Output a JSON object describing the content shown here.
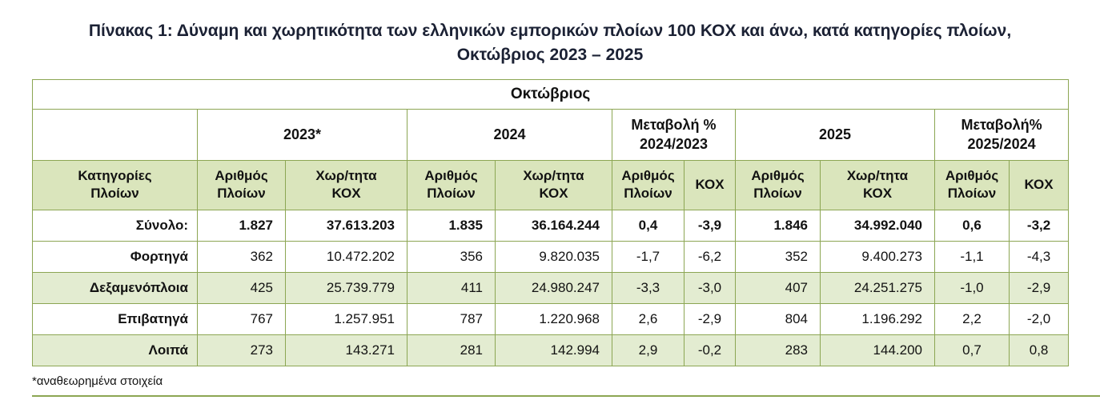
{
  "page": {
    "title_line1": "Πίνακας 1: Δύναμη και χωρητικότητα των ελληνικών εμπορικών πλοίων 100 ΚΟΧ και άνω, κατά κατηγορίες πλοίων,",
    "title_line2": "Οκτώβριος 2023 – 2025",
    "footnote": "*αναθεωρημένα στοιχεία"
  },
  "colors": {
    "border_green": "#8ca653",
    "header_bg_green": "#dae5bc",
    "stripe_bg_green": "#e3ecd1",
    "title_text": "#1b2134"
  },
  "table": {
    "month_header": "Οκτώβριος",
    "groups": [
      {
        "line1": "2023*",
        "line2": ""
      },
      {
        "line1": "2024",
        "line2": ""
      },
      {
        "line1": "Μεταβολή %",
        "line2": "2024/2023"
      },
      {
        "line1": "2025",
        "line2": ""
      },
      {
        "line1": "Μεταβολή%",
        "line2": "2025/2024"
      }
    ],
    "columns": [
      {
        "line1": "Κατηγορίες",
        "line2": "Πλοίων"
      },
      {
        "line1": "Αριθμός",
        "line2": "Πλοίων"
      },
      {
        "line1": "Χωρ/τητα",
        "line2": "ΚΟΧ"
      },
      {
        "line1": "Αριθμός",
        "line2": "Πλοίων"
      },
      {
        "line1": "Χωρ/τητα",
        "line2": "ΚΟΧ"
      },
      {
        "line1": "Αριθμός",
        "line2": "Πλοίων"
      },
      {
        "line1": "ΚΟΧ",
        "line2": ""
      },
      {
        "line1": "Αριθμός",
        "line2": "Πλοίων"
      },
      {
        "line1": "Χωρ/τητα",
        "line2": "ΚΟΧ"
      },
      {
        "line1": "Αριθμός",
        "line2": "Πλοίων"
      },
      {
        "line1": "ΚΟΧ",
        "line2": ""
      }
    ],
    "rows": [
      {
        "category": "Σύνολο:",
        "values": [
          "1.827",
          "37.613.203",
          "1.835",
          "36.164.244",
          "0,4",
          "-3,9",
          "1.846",
          "34.992.040",
          "0,6",
          "-3,2"
        ]
      },
      {
        "category": "Φορτηγά",
        "values": [
          "362",
          "10.472.202",
          "356",
          "9.820.035",
          "-1,7",
          "-6,2",
          "352",
          "9.400.273",
          "-1,1",
          "-4,3"
        ]
      },
      {
        "category": "Δεξαμενόπλοια",
        "values": [
          "425",
          "25.739.779",
          "411",
          "24.980.247",
          "-3,3",
          "-3,0",
          "407",
          "24.251.275",
          "-1,0",
          "-2,9"
        ]
      },
      {
        "category": "Επιβατηγά",
        "values": [
          "767",
          "1.257.951",
          "787",
          "1.220.968",
          "2,6",
          "-2,9",
          "804",
          "1.196.292",
          "2,2",
          "-2,0"
        ]
      },
      {
        "category": "Λοιπά",
        "values": [
          "273",
          "143.271",
          "281",
          "142.994",
          "2,9",
          "-0,2",
          "283",
          "144.200",
          "0,7",
          "0,8"
        ]
      }
    ]
  }
}
